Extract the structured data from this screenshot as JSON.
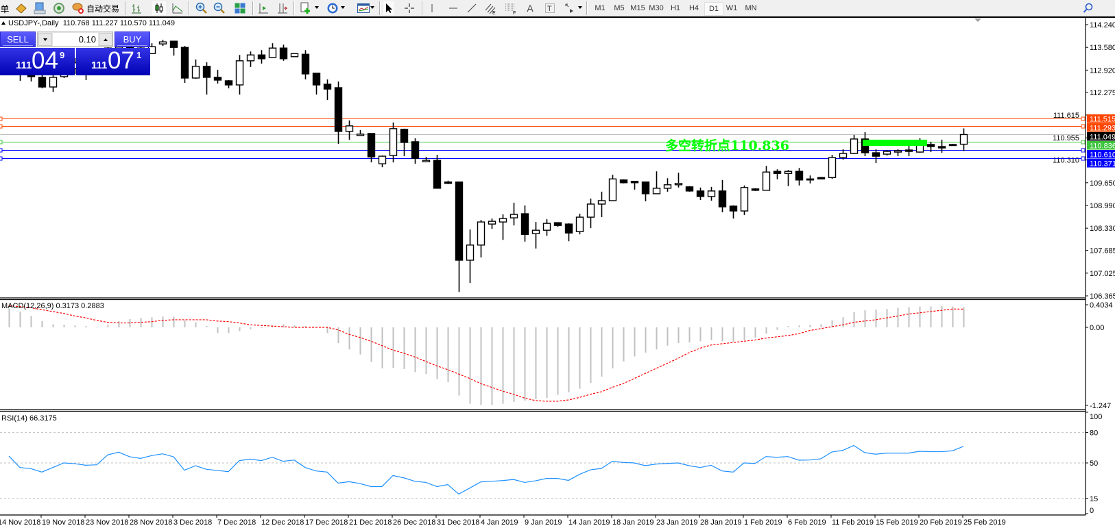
{
  "toolbar": {
    "menu_fragment": "单",
    "auto_trading_label": "自动交易",
    "icons": [
      "profiles-icon",
      "data-window-icon",
      "signals-icon",
      "auto-trading-icon",
      "bar-chart-icon",
      "candlestick-icon",
      "line-chart-icon",
      "zoom-in-icon",
      "zoom-out-icon",
      "tile-windows-icon",
      "chart-shift-icon",
      "auto-scroll-icon",
      "new-indicator-icon",
      "periods-icon",
      "templates-icon",
      "cursor-icon",
      "crosshair-icon",
      "vertical-line-icon",
      "horizontal-line-icon",
      "trendline-icon",
      "equidistant-channel-icon",
      "fibonacci-icon",
      "text-icon",
      "text-label-icon",
      "arrows-icon",
      "search-icon"
    ],
    "timeframes": [
      "M1",
      "M5",
      "M15",
      "M30",
      "H1",
      "H4",
      "D1",
      "W1",
      "MN"
    ],
    "active_timeframe": "D1"
  },
  "chart": {
    "symbol": "USDJPY-,Daily",
    "ohlc": "110.768 111.227 110.570 111.049"
  },
  "trade_panel": {
    "sell_label": "SELL",
    "buy_label": "BUY",
    "volume": "0.10",
    "sell_price": {
      "big_figure": "111",
      "pips": "04",
      "point": "9"
    },
    "buy_price": {
      "big_figure": "111",
      "pips": "07",
      "point": "1"
    },
    "color": "#1c1cd0"
  },
  "annotation": {
    "text": "多空转折点110.836",
    "color": "#00ff00"
  },
  "levels": [
    {
      "price": "111.515",
      "color": "#ff4500",
      "text_color": "#ffffff"
    },
    {
      "price": "111.293",
      "color": "#ff4500",
      "text_color": "#ffffff"
    },
    {
      "price": "111.049",
      "color": "#c0c0c0",
      "label_bg": "#000000",
      "text_color": "#ffffff"
    },
    {
      "price": "110.836",
      "color": "#3cc43c",
      "text_color": "#ffffff"
    },
    {
      "price": "110.610",
      "color": "#0000ff",
      "text_color": "#ffffff"
    },
    {
      "price": "110.371",
      "color": "#0000ff",
      "text_color": "#ffffff"
    }
  ],
  "rectangle": {
    "price_top": 110.9,
    "price_bottom": 110.72,
    "from_bar": 78,
    "to_bar": 83,
    "color": "#00ff00"
  },
  "chart_data": [
    {
      "type": "candlestick",
      "title": "USDJPY-,Daily",
      "ylim": [
        106.365,
        114.24
      ],
      "y_ticks": [
        "114.240",
        "113.580",
        "112.920",
        "112.275",
        "111.615",
        "110.955",
        "110.310",
        "109.650",
        "108.990",
        "108.330",
        "107.685",
        "107.025",
        "106.365"
      ],
      "x_tick_labels": [
        "14 Nov 2018",
        "19 Nov 2018",
        "23 Nov 2018",
        "28 Nov 2018",
        "3 Dec 2018",
        "7 Dec 2018",
        "12 Dec 2018",
        "17 Dec 2018",
        "21 Dec 2018",
        "26 Dec 2018",
        "31 Dec 2018",
        "4 Jan 2019",
        "9 Jan 2019",
        "14 Jan 2019",
        "18 Jan 2019",
        "23 Jan 2019",
        "28 Jan 2019",
        "1 Feb 2019",
        "6 Feb 2019",
        "11 Feb 2019",
        "15 Feb 2019",
        "20 Feb 2019",
        "25 Feb 2019"
      ],
      "ohlc": [
        [
          113.07,
          113.36,
          112.87,
          113.21
        ],
        [
          112.97,
          113.21,
          112.61,
          112.81
        ],
        [
          112.81,
          113.05,
          112.59,
          112.73
        ],
        [
          112.71,
          112.97,
          112.39,
          112.43
        ],
        [
          112.43,
          112.87,
          112.29,
          112.71
        ],
        [
          112.73,
          113.07,
          112.69,
          112.97
        ],
        [
          112.97,
          113.27,
          112.81,
          113.13
        ],
        [
          113.13,
          113.36,
          112.63,
          113.27
        ],
        [
          113.27,
          113.56,
          112.97,
          113.4
        ],
        [
          113.4,
          113.72,
          113.17,
          113.56
        ],
        [
          113.56,
          113.8,
          113.27,
          113.64
        ],
        [
          113.64,
          113.76,
          113.21,
          113.46
        ],
        [
          113.46,
          113.72,
          113.17,
          113.56
        ],
        [
          113.4,
          113.7,
          113.4,
          113.6
        ],
        [
          113.68,
          113.8,
          113.62,
          113.74
        ],
        [
          113.76,
          113.76,
          113.34,
          113.58
        ],
        [
          113.58,
          113.62,
          112.55,
          112.69
        ],
        [
          112.69,
          113.23,
          112.67,
          113.03
        ],
        [
          113.03,
          113.15,
          112.21,
          112.71
        ],
        [
          112.71,
          112.93,
          112.53,
          112.63
        ],
        [
          112.61,
          112.63,
          112.39,
          112.49
        ],
        [
          112.49,
          113.36,
          112.21,
          113.19
        ],
        [
          113.19,
          113.46,
          113.01,
          113.36
        ],
        [
          113.36,
          113.5,
          113.11,
          113.25
        ],
        [
          113.29,
          113.7,
          113.29,
          113.56
        ],
        [
          113.56,
          113.66,
          113.19,
          113.25
        ],
        [
          113.31,
          113.4,
          113.31,
          113.4
        ],
        [
          113.38,
          113.5,
          112.65,
          112.81
        ],
        [
          112.83,
          112.83,
          112.21,
          112.49
        ],
        [
          112.51,
          112.65,
          112.05,
          112.37
        ],
        [
          112.41,
          112.59,
          110.78,
          111.14
        ],
        [
          111.14,
          111.46,
          110.9,
          111.3
        ],
        [
          111.02,
          111.18,
          111.02,
          111.06
        ],
        [
          111.08,
          111.08,
          110.24,
          110.4
        ],
        [
          110.2,
          110.44,
          110.1,
          110.42
        ],
        [
          110.44,
          111.4,
          110.24,
          111.22
        ],
        [
          111.2,
          111.22,
          110.42,
          110.82
        ],
        [
          110.84,
          110.94,
          110.2,
          110.36
        ],
        [
          110.26,
          110.4,
          110.26,
          110.3
        ],
        [
          110.3,
          110.46,
          109.49,
          109.49
        ],
        [
          109.67,
          109.71,
          109.61,
          109.63
        ],
        [
          109.67,
          109.67,
          106.48,
          107.4
        ],
        [
          107.4,
          108.29,
          106.74,
          107.84
        ],
        [
          107.84,
          108.57,
          107.48,
          108.51
        ],
        [
          108.45,
          108.61,
          108.31,
          108.53
        ],
        [
          108.51,
          108.73,
          107.99,
          108.61
        ],
        [
          108.63,
          109.07,
          108.41,
          108.73
        ],
        [
          108.75,
          108.99,
          107.94,
          108.15
        ],
        [
          108.17,
          108.51,
          107.74,
          108.27
        ],
        [
          108.27,
          108.59,
          108.11,
          108.47
        ],
        [
          108.49,
          108.49,
          108.37,
          108.41
        ],
        [
          108.45,
          108.47,
          107.95,
          108.19
        ],
        [
          108.23,
          108.75,
          108.15,
          108.65
        ],
        [
          108.65,
          109.19,
          108.33,
          109.03
        ],
        [
          109.03,
          109.39,
          108.65,
          109.13
        ],
        [
          109.13,
          109.88,
          109.13,
          109.76
        ],
        [
          109.73,
          109.75,
          109.63,
          109.65
        ],
        [
          109.69,
          109.69,
          109.45,
          109.65
        ],
        [
          109.67,
          109.67,
          109.11,
          109.33
        ],
        [
          109.33,
          109.98,
          109.33,
          109.49
        ],
        [
          109.49,
          109.78,
          109.39,
          109.59
        ],
        [
          109.59,
          109.94,
          109.51,
          109.63
        ],
        [
          109.53,
          109.55,
          109.39,
          109.41
        ],
        [
          109.41,
          109.51,
          109.15,
          109.25
        ],
        [
          109.25,
          109.53,
          109.13,
          109.41
        ],
        [
          109.41,
          109.73,
          108.79,
          108.95
        ],
        [
          108.97,
          108.99,
          108.61,
          108.83
        ],
        [
          108.83,
          109.57,
          108.71,
          109.51
        ],
        [
          109.47,
          109.49,
          109.41,
          109.43
        ],
        [
          109.43,
          110.14,
          109.43,
          109.96
        ],
        [
          109.98,
          110.04,
          109.75,
          109.92
        ],
        [
          109.92,
          110.02,
          109.55,
          109.98
        ],
        [
          109.98,
          110.08,
          109.57,
          109.73
        ],
        [
          109.76,
          109.86,
          109.63,
          109.75
        ],
        [
          109.8,
          109.82,
          109.75,
          109.76
        ],
        [
          109.8,
          110.46,
          109.76,
          110.38
        ],
        [
          110.38,
          110.62,
          110.32,
          110.5
        ],
        [
          110.5,
          111.04,
          110.48,
          110.92
        ],
        [
          110.92,
          111.12,
          110.42,
          110.52
        ],
        [
          110.52,
          110.62,
          110.22,
          110.42
        ],
        [
          110.48,
          110.6,
          110.44,
          110.56
        ],
        [
          110.54,
          110.62,
          110.42,
          110.58
        ],
        [
          110.6,
          110.72,
          110.42,
          110.56
        ],
        [
          110.54,
          110.94,
          110.52,
          110.74
        ],
        [
          110.76,
          110.84,
          110.54,
          110.7
        ],
        [
          110.7,
          110.9,
          110.52,
          110.66
        ],
        [
          110.76,
          110.78,
          110.72,
          110.75
        ],
        [
          110.768,
          111.227,
          110.57,
          111.049
        ]
      ],
      "grid": false
    },
    {
      "type": "bar",
      "title": "MACD(12,26,9) 0.3173 0.2883",
      "ylim": [
        -1.247,
        0.4034
      ],
      "y_ticks": [
        "0.4034",
        "0.00",
        "-1.247"
      ],
      "series": [
        {
          "kind": "histogram",
          "color": "#c0c0c0",
          "values": [
            0.3,
            0.25,
            0.18,
            0.1,
            0.05,
            0.04,
            0.03,
            0.02,
            0.01,
            0.04,
            0.1,
            0.13,
            0.15,
            0.16,
            0.17,
            0.17,
            0.11,
            0.08,
            0.02,
            -0.09,
            -0.09,
            -0.06,
            -0.03,
            -0.01,
            0.03,
            0.05,
            0.03,
            0.02,
            0.0,
            -0.09,
            -0.25,
            -0.35,
            -0.43,
            -0.55,
            -0.65,
            -0.64,
            -0.66,
            -0.71,
            -0.74,
            -0.82,
            -0.87,
            -1.08,
            -1.21,
            -1.23,
            -1.23,
            -1.21,
            -1.18,
            -1.16,
            -1.14,
            -1.12,
            -1.07,
            -1.03,
            -0.97,
            -0.88,
            -0.78,
            -0.65,
            -0.54,
            -0.46,
            -0.4,
            -0.35,
            -0.29,
            -0.25,
            -0.24,
            -0.22,
            -0.2,
            -0.22,
            -0.23,
            -0.2,
            -0.16,
            -0.1,
            -0.04,
            0.02,
            0.03,
            0.04,
            0.05,
            0.11,
            0.16,
            0.24,
            0.27,
            0.28,
            0.29,
            0.31,
            0.32,
            0.33,
            0.33,
            0.34,
            0.33,
            0.3173
          ]
        },
        {
          "kind": "signal",
          "color": "#ff0000",
          "values": [
            0.34,
            0.33,
            0.31,
            0.28,
            0.25,
            0.22,
            0.18,
            0.15,
            0.11,
            0.08,
            0.07,
            0.07,
            0.08,
            0.09,
            0.11,
            0.12,
            0.12,
            0.12,
            0.12,
            0.1,
            0.09,
            0.07,
            0.04,
            0.03,
            0.02,
            0.01,
            0.0,
            0.0,
            0.0,
            0.0,
            -0.04,
            -0.11,
            -0.16,
            -0.22,
            -0.29,
            -0.36,
            -0.41,
            -0.47,
            -0.54,
            -0.61,
            -0.67,
            -0.74,
            -0.81,
            -0.89,
            -0.95,
            -1.01,
            -1.06,
            -1.12,
            -1.16,
            -1.17,
            -1.17,
            -1.15,
            -1.11,
            -1.06,
            -1.02,
            -0.95,
            -0.89,
            -0.81,
            -0.73,
            -0.65,
            -0.57,
            -0.49,
            -0.4,
            -0.33,
            -0.28,
            -0.26,
            -0.24,
            -0.22,
            -0.2,
            -0.17,
            -0.15,
            -0.13,
            -0.1,
            -0.05,
            -0.02,
            0.01,
            0.04,
            0.08,
            0.1,
            0.12,
            0.15,
            0.18,
            0.21,
            0.23,
            0.25,
            0.27,
            0.29,
            0.2883
          ]
        }
      ]
    },
    {
      "type": "line",
      "title": "RSI(14) 66.3175",
      "ylim": [
        0,
        100
      ],
      "y_ticks": [
        "100",
        "80",
        "50",
        "15",
        "0"
      ],
      "levels": [
        80,
        50,
        15
      ],
      "series": [
        {
          "color": "#1e90ff",
          "values": [
            56.8,
            45.5,
            44.4,
            41.0,
            45.5,
            50.0,
            49.3,
            47.7,
            48.2,
            57.9,
            60.6,
            56.1,
            54.5,
            57.2,
            59.0,
            56.1,
            42.8,
            47.3,
            43.7,
            42.6,
            41.4,
            52.3,
            53.8,
            52.3,
            55.6,
            51.6,
            52.9,
            45.5,
            42.1,
            41.0,
            30.1,
            31.5,
            29.7,
            26.7,
            26.7,
            37.6,
            35.3,
            31.9,
            30.8,
            26.7,
            28.6,
            19.3,
            25.2,
            31.3,
            31.9,
            32.6,
            33.7,
            30.8,
            32.4,
            34.7,
            34.7,
            32.8,
            38.7,
            43.2,
            44.6,
            51.6,
            50.5,
            50.0,
            47.3,
            48.9,
            49.5,
            50.0,
            47.3,
            45.5,
            47.7,
            42.1,
            41.0,
            50.0,
            49.5,
            56.3,
            55.6,
            56.3,
            52.7,
            52.9,
            54.1,
            60.8,
            62.4,
            67.2,
            60.2,
            58.6,
            59.7,
            59.7,
            59.7,
            61.5,
            61.1,
            61.1,
            62.0,
            66.3175
          ]
        }
      ]
    }
  ]
}
